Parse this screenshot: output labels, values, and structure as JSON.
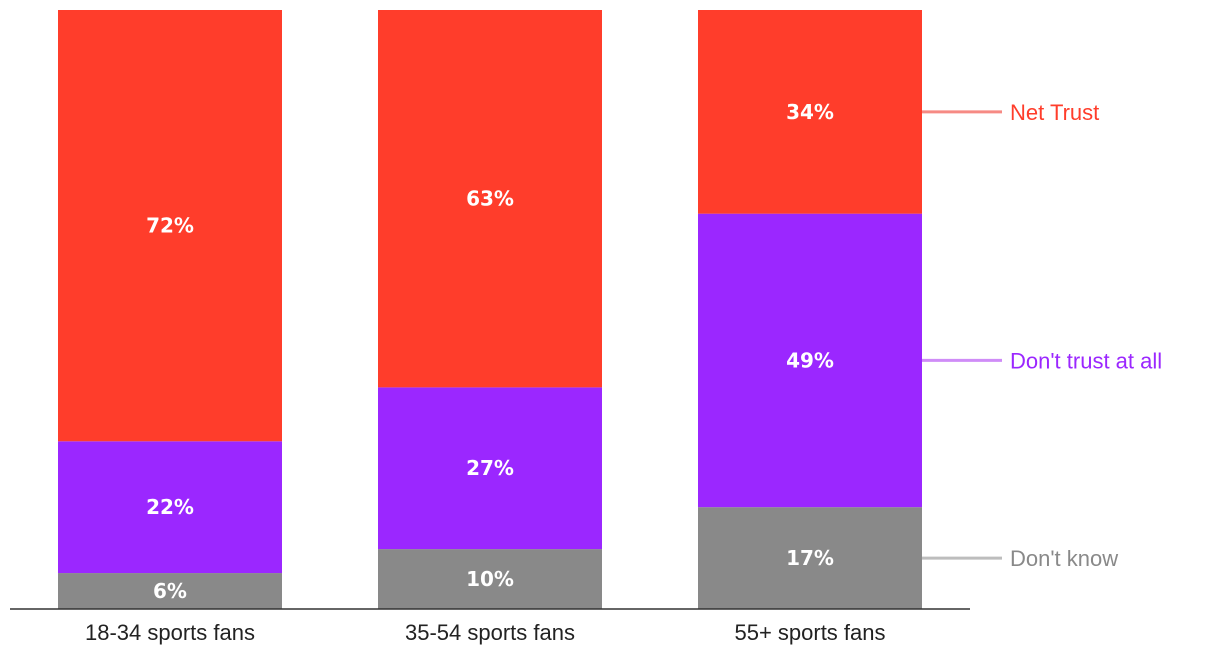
{
  "chart_data": {
    "type": "bar",
    "stacked": true,
    "categories": [
      "18-34 sports fans",
      "35-54 sports fans",
      "55+ sports fans"
    ],
    "series": [
      {
        "name": "Don't know",
        "color": "#898989",
        "legend_line_color": "#bdbdbd",
        "values": [
          6,
          10,
          17
        ]
      },
      {
        "name": "Don't trust at all",
        "color": "#9b27ff",
        "legend_line_color": "#cf8cf7",
        "values": [
          22,
          27,
          49
        ]
      },
      {
        "name": "Net Trust",
        "color": "#ff3d2b",
        "legend_line_color": "#f68a84",
        "values": [
          72,
          63,
          34
        ]
      }
    ],
    "value_suffix": "%",
    "ylim": [
      0,
      100
    ],
    "legend_position": "right, aligned to the last bar",
    "title": "",
    "xlabel": "",
    "ylabel": ""
  }
}
